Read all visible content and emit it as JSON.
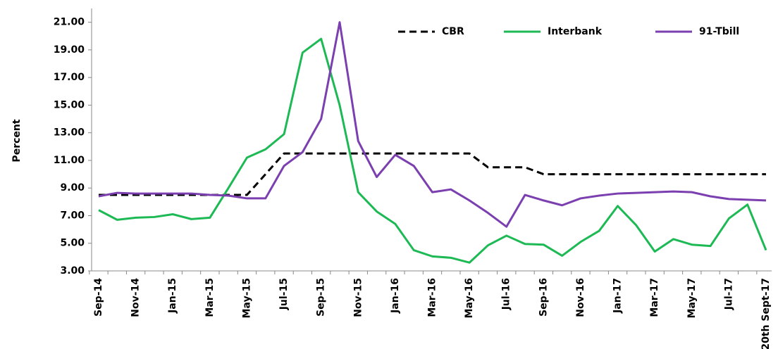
{
  "chart_data": {
    "type": "line",
    "y_label": "Percent",
    "categories": [
      "Sep-14",
      null,
      "Nov-14",
      null,
      "Jan-15",
      null,
      "Mar-15",
      null,
      "May-15",
      null,
      "Jul-15",
      null,
      "Sep-15",
      null,
      "Nov-15",
      null,
      "Jan-16",
      null,
      "Mar-16",
      null,
      "May-16",
      null,
      "Jul-16",
      null,
      "Sep-16",
      null,
      "Nov-16",
      null,
      "Jan-17",
      null,
      "Mar-17",
      null,
      "May-17",
      null,
      "Jul-17",
      null,
      "20th Sept-17"
    ],
    "series": [
      {
        "name": "CBR",
        "color": "#000000",
        "dashed": true,
        "values": [
          8.5,
          8.5,
          8.5,
          8.5,
          8.5,
          8.5,
          8.5,
          8.5,
          8.5,
          10,
          11.5,
          11.5,
          11.5,
          11.5,
          11.5,
          11.5,
          11.5,
          11.5,
          11.5,
          11.5,
          11.5,
          10.5,
          10.5,
          10.5,
          10,
          10,
          10,
          10,
          10,
          10,
          10,
          10,
          10,
          10,
          10,
          10,
          10
        ]
      },
      {
        "name": "Interbank",
        "color": "#1db954",
        "values": [
          7.4,
          6.7,
          6.85,
          6.9,
          7.1,
          6.75,
          6.85,
          9.0,
          11.2,
          11.8,
          12.9,
          18.8,
          19.8,
          15.0,
          8.7,
          7.3,
          6.4,
          4.5,
          4.05,
          3.95,
          3.6,
          4.85,
          5.55,
          4.95,
          4.9,
          4.1,
          5.1,
          5.9,
          7.7,
          6.3,
          4.4,
          5.3,
          4.9,
          4.8,
          6.8,
          7.8,
          4.5
        ]
      },
      {
        "name": "91-Tbill",
        "color": "#7b3fb0",
        "values": [
          8.4,
          8.65,
          8.6,
          8.6,
          8.6,
          8.6,
          8.5,
          8.45,
          8.25,
          8.25,
          10.6,
          11.6,
          14.0,
          21.0,
          12.4,
          9.8,
          11.4,
          10.6,
          8.7,
          8.9,
          8.1,
          7.2,
          6.2,
          8.5,
          8.1,
          7.75,
          8.25,
          8.45,
          8.6,
          8.65,
          8.7,
          8.75,
          8.7,
          8.4,
          8.2,
          8.15,
          8.1
        ]
      }
    ],
    "ylim": [
      3,
      22
    ],
    "yticks": [
      {
        "value": 3,
        "label": "3.00"
      },
      {
        "value": 5,
        "label": "5.00"
      },
      {
        "value": 7,
        "label": "7.00"
      },
      {
        "value": 9,
        "label": "9.00"
      },
      {
        "value": 11,
        "label": "11.00"
      },
      {
        "value": 13,
        "label": "13.00"
      },
      {
        "value": 15,
        "label": "15.00"
      },
      {
        "value": 17,
        "label": "17.00"
      },
      {
        "value": 19,
        "label": "19.00"
      },
      {
        "value": 21,
        "label": "21.00"
      }
    ],
    "grid": false,
    "legend": "upper right"
  }
}
